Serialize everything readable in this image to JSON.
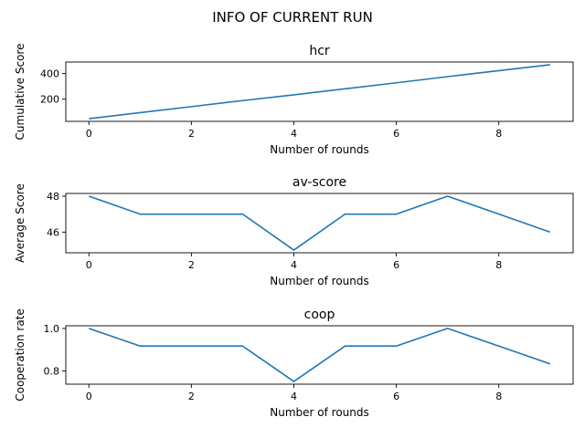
{
  "suptitle": "INFO OF CURRENT RUN",
  "style": {
    "line_color": "#1f77b4",
    "axis_color": "#000000",
    "background": "#ffffff"
  },
  "chart_data": [
    {
      "type": "line",
      "title": "hcr",
      "xlabel": "Number of rounds",
      "ylabel": "Cumulative Score",
      "x": [
        0,
        1,
        2,
        3,
        4,
        5,
        6,
        7,
        8,
        9
      ],
      "series": [
        {
          "values": [
            48,
            95,
            142,
            189,
            234,
            281,
            328,
            376,
            423,
            469
          ]
        }
      ],
      "xlim": [
        -0.45,
        9.45
      ],
      "ylim": [
        27,
        490
      ],
      "xticks": [
        0,
        2,
        4,
        6,
        8
      ],
      "yticks": [
        200,
        400
      ],
      "grid": false
    },
    {
      "type": "line",
      "title": "av-score",
      "xlabel": "Number of rounds",
      "ylabel": "Average Score",
      "x": [
        0,
        1,
        2,
        3,
        4,
        5,
        6,
        7,
        8,
        9
      ],
      "series": [
        {
          "values": [
            48,
            47,
            47,
            47,
            45,
            47,
            47,
            48,
            47,
            46
          ]
        }
      ],
      "xlim": [
        -0.45,
        9.45
      ],
      "ylim": [
        44.85,
        48.15
      ],
      "xticks": [
        0,
        2,
        4,
        6,
        8
      ],
      "yticks": [
        46,
        48
      ],
      "grid": false
    },
    {
      "type": "line",
      "title": "coop",
      "xlabel": "Number of rounds",
      "ylabel": "Cooperation rate",
      "x": [
        0,
        1,
        2,
        3,
        4,
        5,
        6,
        7,
        8,
        9
      ],
      "series": [
        {
          "values": [
            1.0,
            0.917,
            0.917,
            0.917,
            0.75,
            0.917,
            0.917,
            1.0,
            0.917,
            0.833
          ]
        }
      ],
      "xlim": [
        -0.45,
        9.45
      ],
      "ylim": [
        0.7375,
        1.0125
      ],
      "xticks": [
        0,
        2,
        4,
        6,
        8
      ],
      "yticks": [
        0.8,
        1.0
      ],
      "ytick_labels": [
        "0.8",
        "1.0"
      ],
      "grid": false
    }
  ]
}
